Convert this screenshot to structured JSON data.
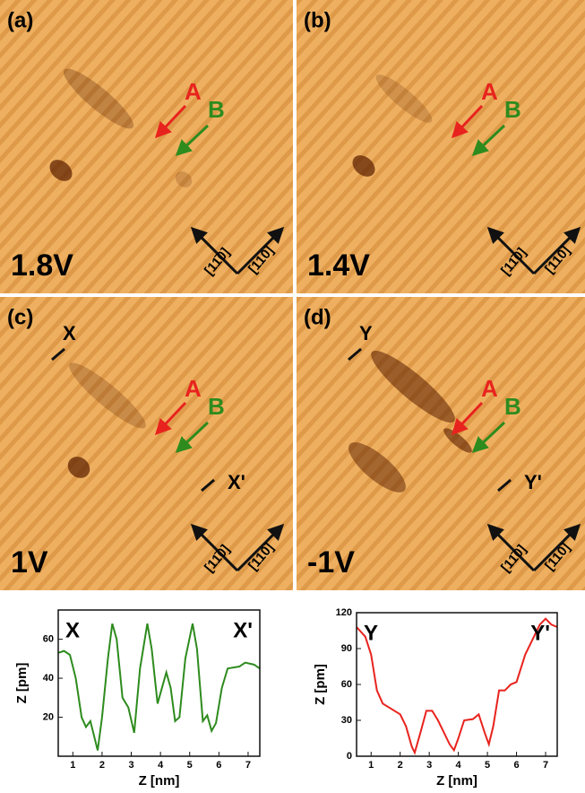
{
  "panels": [
    {
      "label": "(a)",
      "voltage": "1.8V",
      "a": "A",
      "b": "B",
      "dir1": "[11̄0]",
      "dir2": "[110]"
    },
    {
      "label": "(b)",
      "voltage": "1.4V",
      "a": "A",
      "b": "B",
      "dir1": "[11̄0]",
      "dir2": "[110]"
    },
    {
      "label": "(c)",
      "voltage": "1V",
      "a": "A",
      "b": "B",
      "dir1": "[11̄0]",
      "dir2": "[110]",
      "markers": [
        "X",
        "X'"
      ]
    },
    {
      "label": "(d)",
      "voltage": "-1V",
      "a": "A",
      "b": "B",
      "dir1": "[11̄0]",
      "dir2": "[110]",
      "markers": [
        "Y",
        "Y'"
      ]
    }
  ],
  "chart_data": [
    {
      "type": "line",
      "x_label": "Z [nm]",
      "y_label": "Z [pm]",
      "annotations": [
        "X",
        "X'"
      ],
      "x": [
        0.5,
        0.7,
        0.9,
        1.1,
        1.3,
        1.45,
        1.6,
        1.7,
        1.85,
        2.0,
        2.2,
        2.35,
        2.5,
        2.7,
        2.9,
        3.1,
        3.3,
        3.55,
        3.7,
        3.9,
        4.05,
        4.2,
        4.35,
        4.5,
        4.65,
        4.85,
        5.1,
        5.25,
        5.45,
        5.6,
        5.75,
        5.9,
        6.1,
        6.3,
        6.7,
        6.9,
        7.2,
        7.4
      ],
      "series": [
        {
          "color": "#2e8b1e",
          "values": [
            53,
            54,
            52,
            40,
            20,
            15,
            18,
            12,
            3,
            20,
            50,
            68,
            60,
            30,
            25,
            12,
            45,
            68,
            55,
            27,
            35,
            43,
            35,
            18,
            20,
            50,
            68,
            55,
            18,
            21,
            13,
            17,
            35,
            45,
            46,
            48,
            47,
            45
          ]
        }
      ],
      "xlim": [
        0.5,
        7.4
      ],
      "xticks": [
        1,
        2,
        3,
        4,
        5,
        6,
        7
      ],
      "ylim": [
        0,
        75
      ],
      "yticks": [
        20,
        40,
        60
      ]
    },
    {
      "type": "line",
      "x_label": "Z [nm]",
      "y_label": "Z [pm]",
      "annotations": [
        "Y",
        "Y'"
      ],
      "x": [
        0.5,
        0.8,
        1.0,
        1.2,
        1.4,
        1.8,
        2.0,
        2.2,
        2.4,
        2.5,
        2.7,
        2.9,
        3.1,
        3.3,
        3.5,
        3.7,
        3.85,
        4.0,
        4.2,
        4.5,
        4.7,
        4.9,
        5.05,
        5.2,
        5.4,
        5.6,
        5.8,
        6.0,
        6.3,
        6.6,
        6.8,
        7.0,
        7.2,
        7.4
      ],
      "series": [
        {
          "color": "#e8231e",
          "values": [
            108,
            100,
            85,
            55,
            44,
            38,
            35,
            25,
            8,
            3,
            20,
            38,
            38,
            30,
            20,
            10,
            5,
            15,
            30,
            31,
            35,
            20,
            10,
            25,
            55,
            55,
            60,
            62,
            85,
            100,
            110,
            115,
            110,
            108
          ]
        }
      ],
      "xlim": [
        0.5,
        7.4
      ],
      "xticks": [
        1,
        2,
        3,
        4,
        5,
        6,
        7
      ],
      "ylim": [
        0,
        120
      ],
      "yticks": [
        0,
        30,
        60,
        90,
        120
      ]
    }
  ]
}
